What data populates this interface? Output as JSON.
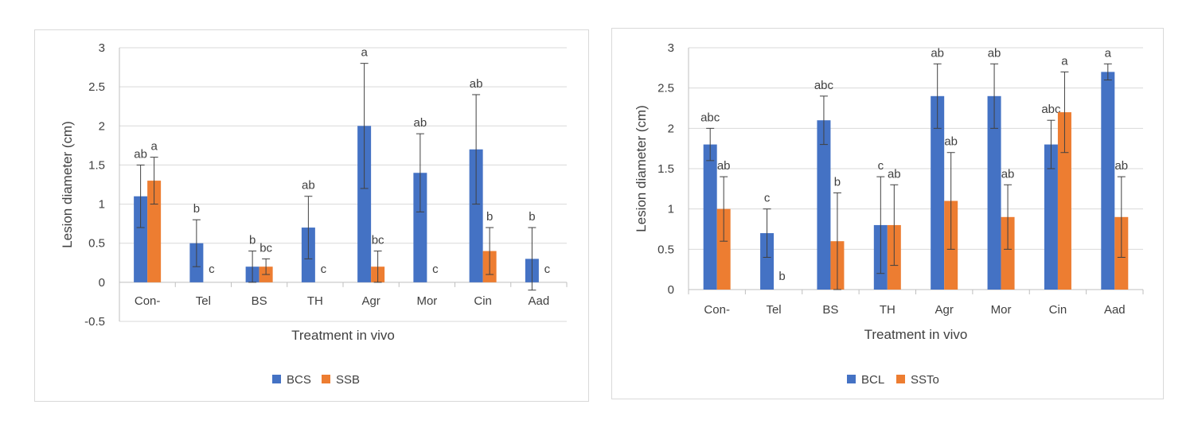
{
  "colors": {
    "blue": "#4472C4",
    "orange": "#ED7D31",
    "grid": "#D9D9D9",
    "axis": "#BFBFBF",
    "text": "#404040",
    "error_bar": "#404040"
  },
  "chart_data": [
    {
      "type": "bar",
      "xlabel": "Treatment in vivo",
      "ylabel": "Lesion diameter (cm)",
      "ylim": [
        -0.5,
        3
      ],
      "yticks": [
        -0.5,
        0,
        0.5,
        1,
        1.5,
        2,
        2.5,
        3
      ],
      "ytick_labels": [
        "-0.5",
        "0",
        "0.5",
        "1",
        "1.5",
        "2",
        "2.5",
        "3"
      ],
      "grid": true,
      "legend_position": "bottom",
      "categories": [
        "Con-",
        "Tel",
        "BS",
        "TH",
        "Agr",
        "Mor",
        "Cin",
        "Aad"
      ],
      "series": [
        {
          "name": "BCS",
          "color": "#4472C4",
          "values": [
            1.1,
            0.5,
            0.2,
            0.7,
            2.0,
            1.4,
            1.7,
            0.3
          ],
          "errors": [
            0.4,
            0.3,
            0.2,
            0.4,
            0.8,
            0.5,
            0.7,
            0.4
          ],
          "letters": [
            "ab",
            "b",
            "b",
            "ab",
            "a",
            "ab",
            "ab",
            "b"
          ]
        },
        {
          "name": "SSB",
          "color": "#ED7D31",
          "values": [
            1.3,
            0,
            0.2,
            0,
            0.2,
            0,
            0.4,
            0
          ],
          "errors": [
            0.3,
            0,
            0.1,
            0,
            0.2,
            0,
            0.3,
            0
          ],
          "letters": [
            "a",
            "c",
            "bc",
            "c",
            "bc",
            "c",
            "b",
            "c"
          ]
        }
      ]
    },
    {
      "type": "bar",
      "xlabel": "Treatment in vivo",
      "ylabel": "Lesion diameter (cm)",
      "ylim": [
        0,
        3
      ],
      "yticks": [
        0,
        0.5,
        1,
        1.5,
        2,
        2.5,
        3
      ],
      "ytick_labels": [
        "0",
        "0.5",
        "1",
        "1.5",
        "2",
        "2.5",
        "3"
      ],
      "grid": true,
      "legend_position": "bottom",
      "categories": [
        "Con-",
        "Tel",
        "BS",
        "TH",
        "Agr",
        "Mor",
        "Cin",
        "Aad"
      ],
      "series": [
        {
          "name": "BCL",
          "color": "#4472C4",
          "values": [
            1.8,
            0.7,
            2.1,
            0.8,
            2.4,
            2.4,
            1.8,
            2.7
          ],
          "errors": [
            0.2,
            0.3,
            0.3,
            0.6,
            0.4,
            0.4,
            0.3,
            0.1
          ],
          "letters": [
            "abc",
            "c",
            "abc",
            "c",
            "ab",
            "ab",
            "abc",
            "a"
          ]
        },
        {
          "name": "SSTo",
          "color": "#ED7D31",
          "values": [
            1.0,
            0,
            0.6,
            0.8,
            1.1,
            0.9,
            2.2,
            0.9
          ],
          "errors": [
            0.4,
            0,
            0.6,
            0.5,
            0.6,
            0.4,
            0.5,
            0.5
          ],
          "letters": [
            "ab",
            "b",
            "b",
            "ab",
            "ab",
            "ab",
            "a",
            "ab"
          ]
        }
      ]
    }
  ]
}
